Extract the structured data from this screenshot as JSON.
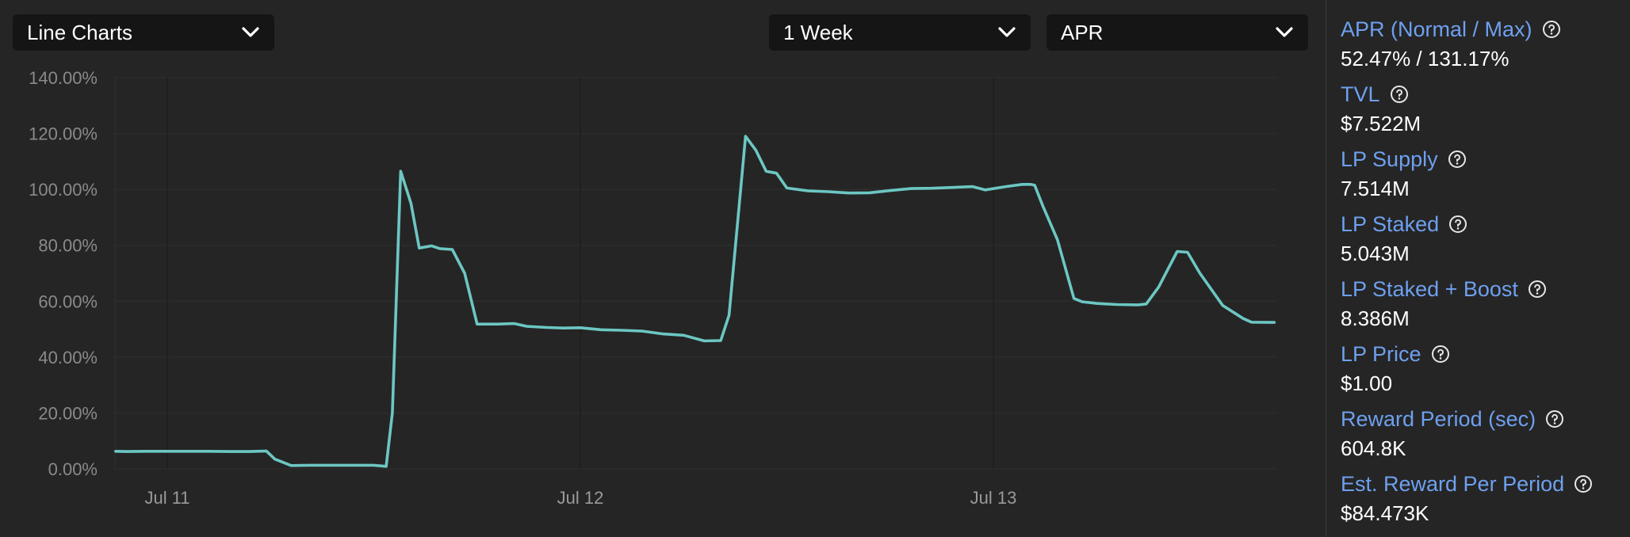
{
  "controls": {
    "chart_type": "Line Charts",
    "time_range": "1 Week",
    "metric": "APR"
  },
  "icons": {
    "dropdown": "chevron-down-icon",
    "help": "question-circle-icon"
  },
  "colors": {
    "background": "#252525",
    "line": "#6cc7c3",
    "stat_label": "#6ea0ef"
  },
  "stats": [
    {
      "label": "APR (Normal / Max)",
      "value": "52.47% / 131.17%"
    },
    {
      "label": "TVL",
      "value": "$7.522M"
    },
    {
      "label": "LP Supply",
      "value": "7.514M"
    },
    {
      "label": "LP Staked",
      "value": "5.043M"
    },
    {
      "label": "LP Staked + Boost",
      "value": "8.386M"
    },
    {
      "label": "LP Price",
      "value": "$1.00"
    },
    {
      "label": "Reward Period (sec)",
      "value": "604.8K"
    },
    {
      "label": "Est. Reward Per Period",
      "value": "$84.473K"
    }
  ],
  "chart_data": {
    "type": "line",
    "ylim": [
      0,
      140
    ],
    "y_ticks": [
      "0.00%",
      "20.00%",
      "40.00%",
      "60.00%",
      "80.00%",
      "100.00%",
      "120.00%",
      "140.00%"
    ],
    "x_ticks": [
      {
        "label": "Jul 11",
        "x": 0
      },
      {
        "label": "Jul 12",
        "x": 1
      },
      {
        "label": "Jul 13",
        "x": 2
      }
    ],
    "xlim": [
      -0.125,
      2.68
    ],
    "grid": true,
    "series": [
      {
        "color": "#6cc7c3",
        "points": [
          [
            -0.125,
            6.3
          ],
          [
            -0.1,
            6.2
          ],
          [
            -0.05,
            6.3
          ],
          [
            0.0,
            6.3
          ],
          [
            0.05,
            6.3
          ],
          [
            0.1,
            6.3
          ],
          [
            0.15,
            6.2
          ],
          [
            0.2,
            6.2
          ],
          [
            0.24,
            6.4
          ],
          [
            0.26,
            3.5
          ],
          [
            0.3,
            1.2
          ],
          [
            0.35,
            1.3
          ],
          [
            0.45,
            1.3
          ],
          [
            0.5,
            1.3
          ],
          [
            0.53,
            0.9
          ],
          [
            0.545,
            20
          ],
          [
            0.565,
            106.5
          ],
          [
            0.59,
            95
          ],
          [
            0.61,
            79
          ],
          [
            0.64,
            79.8
          ],
          [
            0.66,
            78.8
          ],
          [
            0.69,
            78.5
          ],
          [
            0.72,
            70
          ],
          [
            0.75,
            51.8
          ],
          [
            0.8,
            51.8
          ],
          [
            0.84,
            52
          ],
          [
            0.87,
            51
          ],
          [
            0.92,
            50.6
          ],
          [
            0.96,
            50.4
          ],
          [
            1.0,
            50.5
          ],
          [
            1.05,
            49.8
          ],
          [
            1.1,
            49.6
          ],
          [
            1.15,
            49.3
          ],
          [
            1.2,
            48.3
          ],
          [
            1.25,
            47.8
          ],
          [
            1.3,
            45.8
          ],
          [
            1.34,
            45.9
          ],
          [
            1.36,
            55
          ],
          [
            1.385,
            95
          ],
          [
            1.4,
            119
          ],
          [
            1.425,
            114
          ],
          [
            1.45,
            106.5
          ],
          [
            1.475,
            105.8
          ],
          [
            1.5,
            100.5
          ],
          [
            1.55,
            99.5
          ],
          [
            1.6,
            99.2
          ],
          [
            1.65,
            98.7
          ],
          [
            1.7,
            98.8
          ],
          [
            1.75,
            99.6
          ],
          [
            1.8,
            100.3
          ],
          [
            1.85,
            100.4
          ],
          [
            1.9,
            100.7
          ],
          [
            1.95,
            101
          ],
          [
            1.98,
            99.8
          ],
          [
            2.03,
            101
          ],
          [
            2.07,
            101.8
          ],
          [
            2.09,
            101.8
          ],
          [
            2.1,
            101.5
          ],
          [
            2.12,
            94
          ],
          [
            2.155,
            82
          ],
          [
            2.195,
            61
          ],
          [
            2.215,
            59.8
          ],
          [
            2.25,
            59.2
          ],
          [
            2.3,
            58.8
          ],
          [
            2.35,
            58.7
          ],
          [
            2.37,
            59
          ],
          [
            2.4,
            65
          ],
          [
            2.445,
            77.8
          ],
          [
            2.47,
            77.5
          ],
          [
            2.5,
            70
          ],
          [
            2.555,
            58.5
          ],
          [
            2.605,
            53.8
          ],
          [
            2.625,
            52.5
          ],
          [
            2.68,
            52.4
          ]
        ]
      }
    ]
  }
}
